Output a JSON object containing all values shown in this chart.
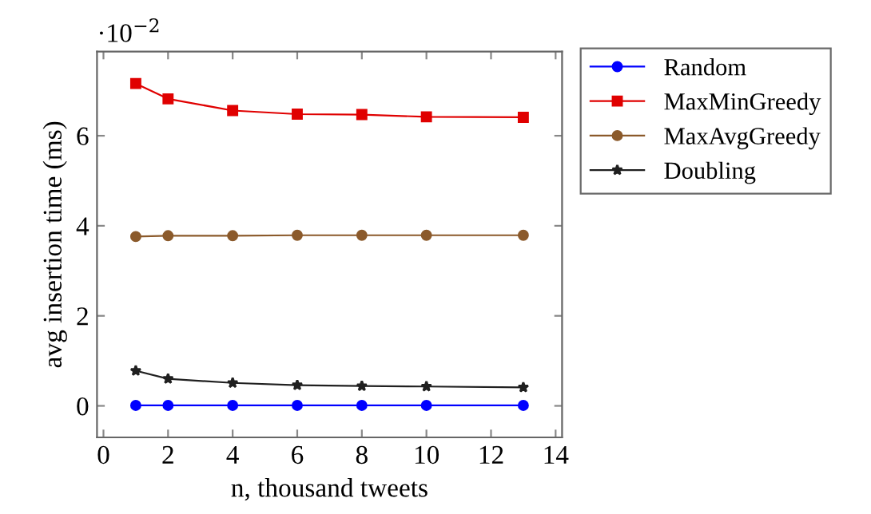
{
  "chart_data": {
    "type": "line",
    "xlabel": "n, thousand tweets",
    "ylabel": "avg insertion time (ms)",
    "x": [
      1,
      2,
      4,
      6,
      8,
      10,
      13
    ],
    "series": [
      {
        "name": "Random",
        "color": "#0000ff",
        "marker": "circle",
        "values": [
          0.01,
          0.01,
          0.01,
          0.01,
          0.01,
          0.01,
          0.01
        ]
      },
      {
        "name": "MaxMinGreedy",
        "color": "#e00000",
        "marker": "square",
        "values": [
          7.16,
          6.82,
          6.56,
          6.48,
          6.47,
          6.42,
          6.41
        ]
      },
      {
        "name": "MaxAvgGreedy",
        "color": "#8b5a2b",
        "marker": "circle",
        "values": [
          3.76,
          3.78,
          3.78,
          3.79,
          3.79,
          3.79,
          3.79
        ]
      },
      {
        "name": "Doubling",
        "color": "#202020",
        "marker": "star",
        "values": [
          0.78,
          0.6,
          0.51,
          0.46,
          0.44,
          0.43,
          0.41
        ]
      }
    ],
    "xlim": [
      -0.2,
      14.2
    ],
    "xticks": [
      0,
      2,
      4,
      6,
      8,
      10,
      12,
      14
    ],
    "ylim": [
      -0.7,
      7.87
    ],
    "yticks": [
      0,
      2,
      4,
      6
    ],
    "annotations": [
      "·10$^{−2}$"
    ],
    "legend": "right",
    "grid": false,
    "line_style": "solid"
  }
}
